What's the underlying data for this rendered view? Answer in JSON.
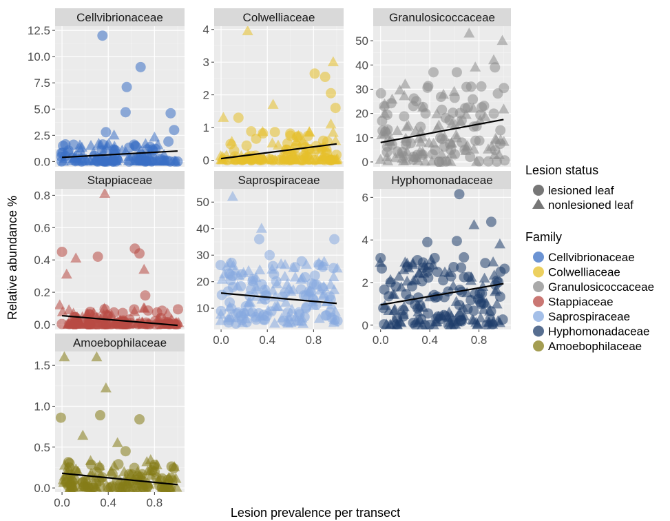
{
  "figure": {
    "xlabel": "Lesion prevalence per transect",
    "ylabel": "Relative abundance %",
    "lesion_legend": {
      "title": "Lesion status",
      "items": [
        {
          "label": "lesioned leaf",
          "shape": "circle"
        },
        {
          "label": "nonlesioned leaf",
          "shape": "triangle"
        }
      ]
    },
    "family_legend": {
      "title": "Family",
      "items": [
        {
          "label": "Cellvibrionaceae",
          "color": "#3a6fc4"
        },
        {
          "label": "Colwelliaceae",
          "color": "#e6c02a"
        },
        {
          "label": "Granulosicoccaceae",
          "color": "#8c8c8c"
        },
        {
          "label": "Stappiaceae",
          "color": "#b84a44"
        },
        {
          "label": "Saprospiraceae",
          "color": "#86a9e0"
        },
        {
          "label": "Hyphomonadaceae",
          "color": "#1f3e6b"
        },
        {
          "label": "Amoebophilaceae",
          "color": "#857c18"
        }
      ]
    }
  },
  "chart_data": [
    {
      "type": "scatter",
      "title": "Cellvibrionaceae",
      "color": "#3a6fc4",
      "xlim": [
        -0.06,
        1.06
      ],
      "ylim": [
        -0.5,
        12.9
      ],
      "xticks": [
        0.0,
        0.4,
        0.8
      ],
      "xtick_labels": [],
      "yticks": [
        0,
        2.5,
        5,
        7.5,
        10,
        12.5
      ],
      "ytick_labels": [
        "0.0",
        "2.5",
        "5.0",
        "7.5",
        "10.0",
        "12.5"
      ],
      "trend": [
        [
          0,
          0.4
        ],
        [
          1,
          1.0
        ]
      ],
      "highlights": [
        {
          "x": 0.35,
          "y": 12.0,
          "shape": "circle"
        },
        {
          "x": 0.68,
          "y": 9.0,
          "shape": "circle"
        },
        {
          "x": 0.56,
          "y": 7.1,
          "shape": "circle"
        },
        {
          "x": 0.55,
          "y": 4.7,
          "shape": "circle"
        },
        {
          "x": 0.94,
          "y": 4.6,
          "shape": "circle"
        },
        {
          "x": 0.97,
          "y": 3.0,
          "shape": "circle"
        },
        {
          "x": 0.38,
          "y": 2.8,
          "shape": "circle"
        },
        {
          "x": 0.45,
          "y": 2.5,
          "shape": "triangle"
        },
        {
          "x": 0.25,
          "y": 1.5,
          "shape": "triangle"
        },
        {
          "x": 0.8,
          "y": 2.3,
          "shape": "triangle"
        },
        {
          "x": 0.1,
          "y": 1.6,
          "shape": "circle"
        }
      ],
      "cloud": {
        "n": 140,
        "yMax": 2.0,
        "skew": 3.5
      }
    },
    {
      "type": "scatter",
      "title": "Colwelliaceae",
      "color": "#e6c02a",
      "xlim": [
        -0.06,
        1.06
      ],
      "ylim": [
        -0.2,
        4.1
      ],
      "xticks": [
        0.0,
        0.4,
        0.8
      ],
      "xtick_labels": [],
      "yticks": [
        0,
        1,
        2,
        3,
        4
      ],
      "ytick_labels": [
        "0",
        "1",
        "2",
        "3",
        "4"
      ],
      "trend": [
        [
          0,
          0.05
        ],
        [
          1,
          0.5
        ]
      ],
      "highlights": [
        {
          "x": 0.23,
          "y": 3.95,
          "shape": "triangle"
        },
        {
          "x": 0.97,
          "y": 3.0,
          "shape": "triangle"
        },
        {
          "x": 0.81,
          "y": 2.65,
          "shape": "circle"
        },
        {
          "x": 0.9,
          "y": 2.55,
          "shape": "circle"
        },
        {
          "x": 0.95,
          "y": 2.05,
          "shape": "circle"
        },
        {
          "x": 0.45,
          "y": 1.7,
          "shape": "triangle"
        },
        {
          "x": 0.99,
          "y": 1.6,
          "shape": "circle"
        },
        {
          "x": 0.02,
          "y": 1.3,
          "shape": "triangle"
        },
        {
          "x": 0.15,
          "y": 1.3,
          "shape": "circle"
        },
        {
          "x": 0.95,
          "y": 1.1,
          "shape": "triangle"
        },
        {
          "x": 0.6,
          "y": 0.75,
          "shape": "circle"
        }
      ],
      "cloud": {
        "n": 140,
        "yMax": 0.9,
        "skew": 4
      }
    },
    {
      "type": "scatter",
      "title": "Granulosicoccaceae",
      "color": "#8c8c8c",
      "xlim": [
        -0.06,
        1.06
      ],
      "ylim": [
        -2,
        56
      ],
      "xticks": [
        0.0,
        0.4,
        0.8
      ],
      "xtick_labels": [],
      "yticks": [
        0,
        10,
        20,
        30,
        40,
        50
      ],
      "ytick_labels": [
        "0",
        "10",
        "20",
        "30",
        "40",
        "50"
      ],
      "trend": [
        [
          0,
          8
        ],
        [
          1,
          17.5
        ]
      ],
      "highlights": [
        {
          "x": 0.72,
          "y": 53,
          "shape": "triangle"
        },
        {
          "x": 0.99,
          "y": 50,
          "shape": "triangle"
        },
        {
          "x": 0.92,
          "y": 42,
          "shape": "triangle"
        },
        {
          "x": 0.93,
          "y": 39,
          "shape": "circle"
        },
        {
          "x": 0.43,
          "y": 37,
          "shape": "circle"
        },
        {
          "x": 0.62,
          "y": 37,
          "shape": "circle"
        },
        {
          "x": 0.77,
          "y": 39,
          "shape": "triangle"
        },
        {
          "x": 0.2,
          "y": 32,
          "shape": "triangle"
        },
        {
          "x": 0.03,
          "y": 23,
          "shape": "circle"
        }
      ],
      "cloud": {
        "n": 150,
        "yMax": 32,
        "skew": 1.6
      }
    },
    {
      "type": "scatter",
      "title": "Stappiaceae",
      "color": "#b84a44",
      "xlim": [
        -0.06,
        1.06
      ],
      "ylim": [
        -0.03,
        0.84
      ],
      "xticks": [
        0.0,
        0.4,
        0.8
      ],
      "xtick_labels": [],
      "yticks": [
        0,
        0.2,
        0.4,
        0.6,
        0.8
      ],
      "ytick_labels": [
        "0.0",
        "0.2",
        "0.4",
        "0.6",
        "0.8"
      ],
      "trend": [
        [
          0,
          0.055
        ],
        [
          1,
          -0.005
        ]
      ],
      "highlights": [
        {
          "x": 0.37,
          "y": 0.81,
          "shape": "triangle"
        },
        {
          "x": 0.63,
          "y": 0.47,
          "shape": "circle"
        },
        {
          "x": 0.0,
          "y": 0.45,
          "shape": "circle"
        },
        {
          "x": 0.67,
          "y": 0.44,
          "shape": "circle"
        },
        {
          "x": 0.12,
          "y": 0.41,
          "shape": "triangle"
        },
        {
          "x": 0.31,
          "y": 0.42,
          "shape": "circle"
        },
        {
          "x": 0.71,
          "y": 0.34,
          "shape": "triangle"
        },
        {
          "x": 0.04,
          "y": 0.31,
          "shape": "triangle"
        },
        {
          "x": 0.72,
          "y": 0.18,
          "shape": "circle"
        },
        {
          "x": -0.02,
          "y": 0.12,
          "shape": "triangle"
        }
      ],
      "cloud": {
        "n": 150,
        "yMax": 0.1,
        "skew": 4
      }
    },
    {
      "type": "scatter",
      "title": "Saprospiraceae",
      "color": "#86a9e0",
      "xlim": [
        -0.06,
        1.06
      ],
      "ylim": [
        2,
        55
      ],
      "xticks": [
        0.0,
        0.4,
        0.8
      ],
      "xtick_labels": [
        "0.0",
        "0.4",
        "0.8"
      ],
      "yticks": [
        10,
        20,
        30,
        40,
        50
      ],
      "ytick_labels": [
        "10",
        "20",
        "30",
        "40",
        "50"
      ],
      "trend": [
        [
          0,
          15.7
        ],
        [
          1,
          11.8
        ]
      ],
      "highlights": [
        {
          "x": 0.1,
          "y": 52,
          "shape": "triangle"
        },
        {
          "x": 0.35,
          "y": 40,
          "shape": "triangle"
        },
        {
          "x": 0.33,
          "y": 36,
          "shape": "circle"
        },
        {
          "x": 0.98,
          "y": 36,
          "shape": "circle"
        },
        {
          "x": 0.42,
          "y": 30,
          "shape": "circle"
        },
        {
          "x": 0.12,
          "y": 24,
          "shape": "triangle"
        }
      ],
      "cloud": {
        "n": 170,
        "yMin": 4,
        "yMax": 28,
        "skew": 1.2
      }
    },
    {
      "type": "scatter",
      "title": "Hyphomonadaceae",
      "color": "#1f3e6b",
      "xlim": [
        -0.06,
        1.06
      ],
      "ylim": [
        -0.2,
        6.4
      ],
      "xticks": [
        0.0,
        0.4,
        0.8
      ],
      "xtick_labels": [
        "0.0",
        "0.4",
        "0.8"
      ],
      "yticks": [
        0,
        2,
        4,
        6
      ],
      "ytick_labels": [
        "0",
        "2",
        "4",
        "6"
      ],
      "trend": [
        [
          0,
          0.95
        ],
        [
          1,
          1.95
        ]
      ],
      "highlights": [
        {
          "x": 0.64,
          "y": 6.15,
          "shape": "circle"
        },
        {
          "x": 0.9,
          "y": 4.85,
          "shape": "circle"
        },
        {
          "x": 0.76,
          "y": 4.7,
          "shape": "triangle"
        },
        {
          "x": 0.38,
          "y": 3.9,
          "shape": "circle"
        },
        {
          "x": 0.62,
          "y": 3.95,
          "shape": "circle"
        },
        {
          "x": 0.0,
          "y": 3.15,
          "shape": "circle"
        },
        {
          "x": 0.97,
          "y": 3.8,
          "shape": "triangle"
        },
        {
          "x": 0.22,
          "y": 2.75,
          "shape": "circle"
        }
      ],
      "cloud": {
        "n": 170,
        "yMin": 0,
        "yMax": 3.2,
        "skew": 1.4
      }
    },
    {
      "type": "scatter",
      "title": "Amoebophilaceae",
      "color": "#857c18",
      "xlim": [
        -0.06,
        1.06
      ],
      "ylim": [
        -0.05,
        1.67
      ],
      "xticks": [
        0.0,
        0.4,
        0.8
      ],
      "xtick_labels": [
        "0.0",
        "0.4",
        "0.8"
      ],
      "yticks": [
        0,
        0.5,
        1.0,
        1.5
      ],
      "ytick_labels": [
        "0.0",
        "0.5",
        "1.0",
        "1.5"
      ],
      "trend": [
        [
          0,
          0.18
        ],
        [
          1,
          0.04
        ]
      ],
      "highlights": [
        {
          "x": 0.02,
          "y": 1.6,
          "shape": "triangle"
        },
        {
          "x": 0.3,
          "y": 1.6,
          "shape": "triangle"
        },
        {
          "x": 0.38,
          "y": 1.22,
          "shape": "triangle"
        },
        {
          "x": 0.33,
          "y": 0.89,
          "shape": "circle"
        },
        {
          "x": -0.01,
          "y": 0.86,
          "shape": "circle"
        },
        {
          "x": 0.67,
          "y": 0.84,
          "shape": "circle"
        },
        {
          "x": 0.18,
          "y": 0.64,
          "shape": "triangle"
        },
        {
          "x": 0.48,
          "y": 0.55,
          "shape": "triangle"
        },
        {
          "x": 0.55,
          "y": 0.45,
          "shape": "circle"
        }
      ],
      "cloud": {
        "n": 150,
        "yMax": 0.35,
        "skew": 2.5
      }
    }
  ]
}
